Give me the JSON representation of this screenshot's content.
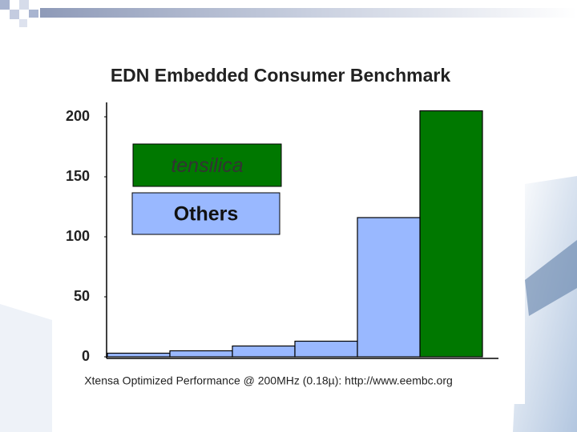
{
  "chart_data": {
    "type": "bar",
    "title": "EDN Embedded Consumer Benchmark",
    "x_label": "Xtensa Optimized Performance @ 200MHz (0.18µ): http://www.eembc.org",
    "series": [
      {
        "name": "tensilica",
        "color": "#007800",
        "values": [
          null,
          null,
          null,
          null,
          null,
          205
        ]
      },
      {
        "name": "Others",
        "color": "#99b8ff",
        "values": [
          3,
          5,
          9,
          13,
          116,
          null
        ]
      }
    ],
    "ylim": [
      0,
      210
    ],
    "yticks": [
      0,
      50,
      100,
      150,
      200
    ]
  }
}
